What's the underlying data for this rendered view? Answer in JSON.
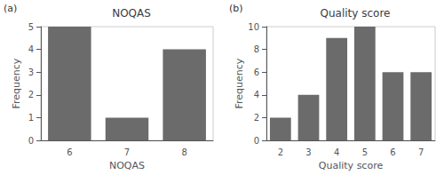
{
  "chart_data": [
    {
      "type": "bar",
      "title": "NOQAS",
      "xlabel": "NOQAS",
      "ylabel": "Frequency",
      "categories": [
        6,
        7,
        8
      ],
      "values": [
        5,
        1,
        4
      ],
      "color": "#6b6b6b",
      "ylim": [
        0,
        5
      ],
      "yticks": [
        0,
        1,
        2,
        3,
        4,
        5
      ],
      "grid": false,
      "annotation": "(a)"
    },
    {
      "type": "bar",
      "title": "Quality score",
      "xlabel": "Quality score",
      "ylabel": "Frequency",
      "categories": [
        2,
        3,
        4,
        5,
        6,
        7
      ],
      "values": [
        2,
        4,
        9,
        10,
        6,
        6
      ],
      "color": "#6b6b6b",
      "ylim": [
        0,
        10
      ],
      "yticks": [
        0,
        2,
        4,
        6,
        8,
        10
      ],
      "grid": false,
      "annotation": "(b)"
    }
  ]
}
